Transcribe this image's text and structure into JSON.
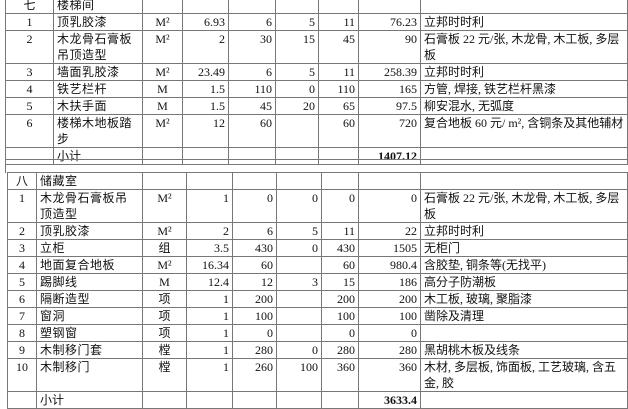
{
  "sections": [
    {
      "number": "七",
      "name": "楼梯间",
      "rows": [
        {
          "no": "1",
          "item": "顶乳胶漆",
          "unit": "M²",
          "qty": "6.93",
          "material": "6",
          "labor": "5",
          "unit_price": "11",
          "total": "76.23",
          "remark": "立邦时时利"
        },
        {
          "no": "2",
          "item": "木龙骨石膏板吊顶造型",
          "unit": "M²",
          "qty": "2",
          "material": "30",
          "labor": "15",
          "unit_price": "45",
          "total": "90",
          "remark": "石膏板 22 元/张, 木龙骨, 木工板, 多层板"
        },
        {
          "no": "3",
          "item": "墙面乳胶漆",
          "unit": "M²",
          "qty": "23.49",
          "material": "6",
          "labor": "5",
          "unit_price": "11",
          "total": "258.39",
          "remark": "立邦时时利"
        },
        {
          "no": "4",
          "item": "铁艺栏杆",
          "unit": "M",
          "qty": "1.5",
          "material": "110",
          "labor": "0",
          "unit_price": "110",
          "total": "165",
          "remark": "方管, 焊接, 铁艺栏杆黑漆"
        },
        {
          "no": "5",
          "item": "木扶手面",
          "unit": "M",
          "qty": "1.5",
          "material": "45",
          "labor": "20",
          "unit_price": "65",
          "total": "97.5",
          "remark": "柳安混水, 无弧度"
        },
        {
          "no": "6",
          "item": "楼梯木地板踏步",
          "unit": "M²",
          "qty": "12",
          "material": "60",
          "labor": "",
          "unit_price": "60",
          "total": "720",
          "remark": "复合地板 60 元/ m², 含铜条及其他辅材"
        }
      ],
      "subtotal_label": "小计",
      "subtotal": "1407.12"
    },
    {
      "number": "八",
      "name": "储藏室",
      "rows": [
        {
          "no": "1",
          "item": "木龙骨石膏板吊顶造型",
          "unit": "M²",
          "qty": "1",
          "material": "0",
          "labor": "0",
          "unit_price": "0",
          "total": "0",
          "remark": "石膏板 22 元/张, 木龙骨, 木工板, 多层板"
        },
        {
          "no": "2",
          "item": "顶乳胶漆",
          "unit": "M²",
          "qty": "2",
          "material": "6",
          "labor": "5",
          "unit_price": "11",
          "total": "22",
          "remark": "立邦时时利"
        },
        {
          "no": "3",
          "item": "立柜",
          "unit": "组",
          "qty": "3.5",
          "material": "430",
          "labor": "0",
          "unit_price": "430",
          "total": "1505",
          "remark": "无柜门"
        },
        {
          "no": "4",
          "item": "地面复合地板",
          "unit": "M²",
          "qty": "16.34",
          "material": "60",
          "labor": "",
          "unit_price": "60",
          "total": "980.4",
          "remark": "含胶垫, 铜条等(无找平)"
        },
        {
          "no": "5",
          "item": "踢脚线",
          "unit": "M",
          "qty": "12.4",
          "material": "12",
          "labor": "3",
          "unit_price": "15",
          "total": "186",
          "remark": "高分子防潮板"
        },
        {
          "no": "6",
          "item": "隔断造型",
          "unit": "项",
          "qty": "1",
          "material": "200",
          "labor": "",
          "unit_price": "200",
          "total": "200",
          "remark": "木工板, 玻璃, 聚脂漆"
        },
        {
          "no": "7",
          "item": "窗洞",
          "unit": "项",
          "qty": "1",
          "material": "100",
          "labor": "",
          "unit_price": "100",
          "total": "100",
          "remark": "凿除及清理"
        },
        {
          "no": "8",
          "item": "塑钢窗",
          "unit": "项",
          "qty": "1",
          "material": "0",
          "labor": "",
          "unit_price": "0",
          "total": "0",
          "remark": ""
        },
        {
          "no": "9",
          "item": "木制移门套",
          "unit": "樘",
          "qty": "1",
          "material": "280",
          "labor": "0",
          "unit_price": "280",
          "total": "280",
          "remark": "黑胡桃木板及线条"
        },
        {
          "no": "10",
          "item": "木制移门",
          "unit": "樘",
          "qty": "1",
          "material": "260",
          "labor": "100",
          "unit_price": "360",
          "total": "360",
          "remark": "木材, 多层板, 饰面板, 工艺玻璃, 含五金, 胶"
        }
      ],
      "subtotal_label": "小计",
      "subtotal": "3633.4"
    }
  ]
}
